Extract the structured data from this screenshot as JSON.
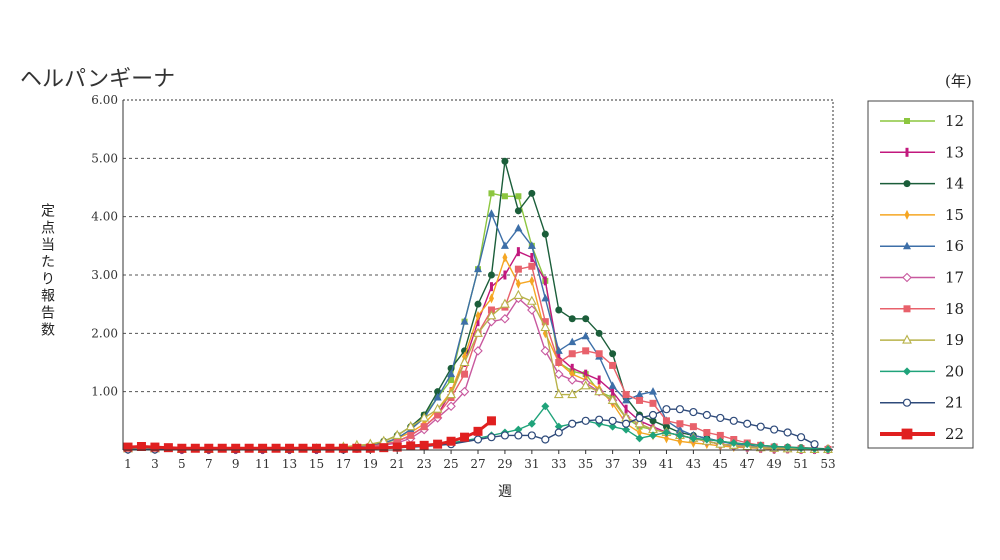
{
  "chart_data": {
    "type": "line",
    "title": "ヘルパンギーナ",
    "xlabel": "週",
    "ylabel": "定点当たり報告数",
    "legend_title": "(年)",
    "legend_position": "right",
    "ylim": [
      0,
      6
    ],
    "xlim": [
      1,
      53
    ],
    "y_ticks": [
      "1.00",
      "2.00",
      "3.00",
      "4.00",
      "5.00",
      "6.00"
    ],
    "x_ticks": [
      "1",
      "3",
      "5",
      "7",
      "9",
      "11",
      "13",
      "15",
      "17",
      "19",
      "21",
      "23",
      "25",
      "27",
      "29",
      "31",
      "33",
      "35",
      "37",
      "39",
      "41",
      "43",
      "45",
      "47",
      "49",
      "51",
      "53"
    ],
    "grid": "horizontal-dashed",
    "series": [
      {
        "name": "12",
        "color": "#8cc63f",
        "marker": "square-small",
        "x": [
          1,
          3,
          5,
          7,
          9,
          11,
          13,
          15,
          17,
          18,
          19,
          20,
          21,
          22,
          23,
          24,
          25,
          26,
          27,
          28,
          29,
          30,
          31,
          32,
          33,
          34,
          35,
          36,
          37,
          38,
          39,
          40,
          41,
          42,
          43,
          44,
          45,
          46,
          47,
          48,
          49,
          50,
          51,
          52,
          53
        ],
        "y": [
          0.03,
          0.02,
          0.01,
          0.01,
          0.01,
          0.01,
          0.01,
          0.02,
          0.03,
          0.05,
          0.07,
          0.1,
          0.2,
          0.35,
          0.6,
          0.9,
          1.2,
          2.2,
          3.1,
          4.4,
          4.35,
          4.35,
          3.5,
          2.9,
          1.5,
          1.35,
          1.3,
          1.0,
          0.9,
          0.55,
          0.4,
          0.35,
          0.3,
          0.25,
          0.2,
          0.15,
          0.1,
          0.07,
          0.05,
          0.03,
          0.02,
          0.02,
          0.01,
          0.01,
          0.01
        ]
      },
      {
        "name": "13",
        "color": "#c2187d",
        "marker": "bar",
        "x": [
          1,
          3,
          5,
          7,
          9,
          11,
          13,
          15,
          17,
          18,
          19,
          20,
          21,
          22,
          23,
          24,
          25,
          26,
          27,
          28,
          29,
          30,
          31,
          32,
          33,
          34,
          35,
          36,
          37,
          38,
          39,
          40,
          41,
          42,
          43,
          44,
          45,
          46,
          47,
          48,
          49,
          50,
          51,
          52,
          53
        ],
        "y": [
          0.02,
          0.02,
          0.01,
          0.01,
          0.01,
          0.01,
          0.01,
          0.01,
          0.02,
          0.03,
          0.05,
          0.08,
          0.15,
          0.25,
          0.4,
          0.6,
          1.0,
          1.5,
          2.2,
          2.8,
          3.0,
          3.4,
          3.3,
          2.9,
          1.6,
          1.4,
          1.3,
          1.2,
          1.0,
          0.7,
          0.5,
          0.4,
          0.3,
          0.25,
          0.2,
          0.15,
          0.1,
          0.08,
          0.05,
          0.03,
          0.02,
          0.02,
          0.01,
          0.01,
          0.01
        ]
      },
      {
        "name": "14",
        "color": "#1b5e3a",
        "marker": "circle",
        "x": [
          1,
          3,
          5,
          7,
          9,
          11,
          13,
          15,
          17,
          18,
          19,
          20,
          21,
          22,
          23,
          24,
          25,
          26,
          27,
          28,
          29,
          30,
          31,
          32,
          33,
          34,
          35,
          36,
          37,
          38,
          39,
          40,
          41,
          42,
          43,
          44,
          45,
          46,
          47,
          48,
          49,
          50,
          51,
          52,
          53
        ],
        "y": [
          0.03,
          0.02,
          0.01,
          0.01,
          0.01,
          0.01,
          0.01,
          0.02,
          0.03,
          0.05,
          0.08,
          0.15,
          0.25,
          0.4,
          0.6,
          1.0,
          1.4,
          1.7,
          2.5,
          3.0,
          4.95,
          4.1,
          4.4,
          3.7,
          2.4,
          2.25,
          2.25,
          2.0,
          1.65,
          0.9,
          0.6,
          0.5,
          0.4,
          0.3,
          0.25,
          0.2,
          0.15,
          0.12,
          0.1,
          0.08,
          0.06,
          0.05,
          0.04,
          0.03,
          0.02
        ]
      },
      {
        "name": "15",
        "color": "#f5a623",
        "marker": "diamond-bar",
        "x": [
          1,
          3,
          5,
          7,
          9,
          11,
          13,
          15,
          17,
          18,
          19,
          20,
          21,
          22,
          23,
          24,
          25,
          26,
          27,
          28,
          29,
          30,
          31,
          32,
          33,
          34,
          35,
          36,
          37,
          38,
          39,
          40,
          41,
          42,
          43,
          44,
          45,
          46,
          47,
          48,
          49,
          50,
          51,
          52,
          53
        ],
        "y": [
          0.02,
          0.02,
          0.01,
          0.01,
          0.01,
          0.01,
          0.01,
          0.02,
          0.04,
          0.06,
          0.08,
          0.12,
          0.2,
          0.3,
          0.45,
          0.7,
          1.0,
          1.6,
          2.3,
          2.6,
          3.3,
          2.85,
          2.9,
          2.0,
          1.5,
          1.3,
          1.2,
          1.05,
          0.8,
          0.45,
          0.3,
          0.25,
          0.2,
          0.15,
          0.12,
          0.1,
          0.07,
          0.05,
          0.04,
          0.03,
          0.02,
          0.02,
          0.01,
          0.01,
          0.01
        ]
      },
      {
        "name": "16",
        "color": "#3d6fa8",
        "marker": "triangle",
        "x": [
          1,
          3,
          5,
          7,
          9,
          11,
          13,
          15,
          17,
          18,
          19,
          20,
          21,
          22,
          23,
          24,
          25,
          26,
          27,
          28,
          29,
          30,
          31,
          32,
          33,
          34,
          35,
          36,
          37,
          38,
          39,
          40,
          41,
          42,
          43,
          44,
          45,
          46,
          47,
          48,
          49,
          50,
          51,
          52,
          53
        ],
        "y": [
          0.03,
          0.02,
          0.01,
          0.01,
          0.01,
          0.01,
          0.01,
          0.02,
          0.03,
          0.05,
          0.07,
          0.12,
          0.2,
          0.35,
          0.55,
          0.9,
          1.3,
          2.2,
          3.1,
          4.05,
          3.5,
          3.8,
          3.5,
          2.6,
          1.7,
          1.85,
          1.95,
          1.6,
          1.1,
          0.85,
          0.95,
          1.0,
          0.5,
          0.35,
          0.25,
          0.2,
          0.15,
          0.1,
          0.08,
          0.05,
          0.04,
          0.03,
          0.02,
          0.01,
          0.01
        ]
      },
      {
        "name": "17",
        "color": "#c8589e",
        "marker": "diamond-open",
        "x": [
          1,
          3,
          5,
          7,
          9,
          11,
          13,
          15,
          17,
          18,
          19,
          20,
          21,
          22,
          23,
          24,
          25,
          26,
          27,
          28,
          29,
          30,
          31,
          32,
          33,
          34,
          35,
          36,
          37,
          38,
          39,
          40,
          41,
          42,
          43,
          44,
          45,
          46,
          47,
          48,
          49,
          50,
          51,
          52,
          53
        ],
        "y": [
          0.02,
          0.02,
          0.01,
          0.01,
          0.01,
          0.01,
          0.01,
          0.01,
          0.02,
          0.03,
          0.05,
          0.08,
          0.12,
          0.2,
          0.35,
          0.55,
          0.75,
          1.0,
          1.7,
          2.2,
          2.25,
          2.6,
          2.4,
          1.7,
          1.3,
          1.2,
          1.15,
          1.0,
          0.85,
          0.55,
          0.45,
          0.35,
          0.3,
          0.25,
          0.2,
          0.15,
          0.1,
          0.07,
          0.05,
          0.04,
          0.03,
          0.02,
          0.01,
          0.01,
          0.01
        ]
      },
      {
        "name": "18",
        "color": "#e8616b",
        "marker": "square",
        "x": [
          1,
          3,
          5,
          7,
          9,
          11,
          13,
          15,
          17,
          18,
          19,
          20,
          21,
          22,
          23,
          24,
          25,
          26,
          27,
          28,
          29,
          30,
          31,
          32,
          33,
          34,
          35,
          36,
          37,
          38,
          39,
          40,
          41,
          42,
          43,
          44,
          45,
          46,
          47,
          48,
          49,
          50,
          51,
          52,
          53
        ],
        "y": [
          0.02,
          0.02,
          0.01,
          0.01,
          0.01,
          0.01,
          0.01,
          0.01,
          0.02,
          0.04,
          0.06,
          0.1,
          0.15,
          0.25,
          0.4,
          0.6,
          0.9,
          1.3,
          2.0,
          2.4,
          2.45,
          3.1,
          3.15,
          2.2,
          1.5,
          1.65,
          1.7,
          1.65,
          1.45,
          0.95,
          0.85,
          0.8,
          0.5,
          0.45,
          0.4,
          0.3,
          0.25,
          0.18,
          0.12,
          0.08,
          0.05,
          0.03,
          0.02,
          0.01,
          0.01
        ]
      },
      {
        "name": "19",
        "color": "#b8b24a",
        "marker": "triangle-open",
        "x": [
          1,
          3,
          5,
          7,
          9,
          11,
          13,
          15,
          17,
          18,
          19,
          20,
          21,
          22,
          23,
          24,
          25,
          26,
          27,
          28,
          29,
          30,
          31,
          32,
          33,
          34,
          35,
          36,
          37,
          38,
          39,
          40,
          41,
          42,
          43,
          44,
          45,
          46,
          47,
          48,
          49,
          50,
          51,
          52,
          53
        ],
        "y": [
          0.02,
          0.02,
          0.01,
          0.01,
          0.01,
          0.01,
          0.01,
          0.02,
          0.05,
          0.08,
          0.1,
          0.15,
          0.25,
          0.4,
          0.55,
          0.7,
          0.95,
          1.5,
          2.0,
          2.3,
          2.5,
          2.65,
          2.55,
          2.1,
          0.95,
          0.95,
          1.1,
          1.0,
          0.85,
          0.55,
          0.45,
          0.35,
          0.3,
          0.25,
          0.2,
          0.15,
          0.1,
          0.08,
          0.06,
          0.04,
          0.03,
          0.02,
          0.01,
          0.01,
          0.01
        ]
      },
      {
        "name": "20",
        "color": "#1fa37a",
        "marker": "diamond",
        "x": [
          1,
          3,
          5,
          7,
          9,
          11,
          13,
          15,
          17,
          19,
          21,
          23,
          25,
          27,
          28,
          29,
          30,
          31,
          32,
          33,
          34,
          35,
          36,
          37,
          38,
          39,
          40,
          41,
          42,
          43,
          44,
          45,
          46,
          47,
          48,
          49,
          50,
          51,
          52,
          53
        ],
        "y": [
          0.01,
          0.01,
          0.01,
          0.01,
          0.01,
          0.01,
          0.01,
          0.01,
          0.01,
          0.02,
          0.04,
          0.07,
          0.12,
          0.2,
          0.25,
          0.3,
          0.35,
          0.45,
          0.75,
          0.4,
          0.45,
          0.5,
          0.45,
          0.4,
          0.35,
          0.2,
          0.25,
          0.3,
          0.25,
          0.2,
          0.18,
          0.15,
          0.12,
          0.1,
          0.08,
          0.06,
          0.05,
          0.03,
          0.02,
          0.01
        ]
      },
      {
        "name": "21",
        "color": "#2e4a7a",
        "marker": "circle-open",
        "x": [
          1,
          3,
          5,
          7,
          9,
          11,
          13,
          15,
          17,
          19,
          21,
          23,
          25,
          27,
          28,
          29,
          30,
          31,
          32,
          33,
          34,
          35,
          36,
          37,
          38,
          39,
          40,
          41,
          42,
          43,
          44,
          45,
          46,
          47,
          48,
          49,
          50,
          51,
          52
        ],
        "y": [
          0.01,
          0.01,
          0.01,
          0.01,
          0.01,
          0.01,
          0.01,
          0.01,
          0.01,
          0.02,
          0.04,
          0.06,
          0.1,
          0.18,
          0.22,
          0.25,
          0.25,
          0.25,
          0.18,
          0.3,
          0.45,
          0.5,
          0.52,
          0.5,
          0.45,
          0.55,
          0.6,
          0.7,
          0.7,
          0.65,
          0.6,
          0.55,
          0.5,
          0.45,
          0.4,
          0.35,
          0.3,
          0.22,
          0.1
        ]
      },
      {
        "name": "22",
        "color": "#e02020",
        "marker": "square-big",
        "x": [
          1,
          2,
          3,
          4,
          5,
          6,
          7,
          8,
          9,
          10,
          11,
          12,
          13,
          14,
          15,
          16,
          17,
          18,
          19,
          20,
          21,
          22,
          23,
          24,
          25,
          26,
          27,
          28
        ],
        "y": [
          0.05,
          0.06,
          0.05,
          0.04,
          0.03,
          0.03,
          0.03,
          0.03,
          0.03,
          0.03,
          0.03,
          0.03,
          0.03,
          0.03,
          0.03,
          0.03,
          0.03,
          0.03,
          0.03,
          0.04,
          0.05,
          0.07,
          0.08,
          0.1,
          0.15,
          0.22,
          0.32,
          0.5
        ]
      }
    ]
  }
}
